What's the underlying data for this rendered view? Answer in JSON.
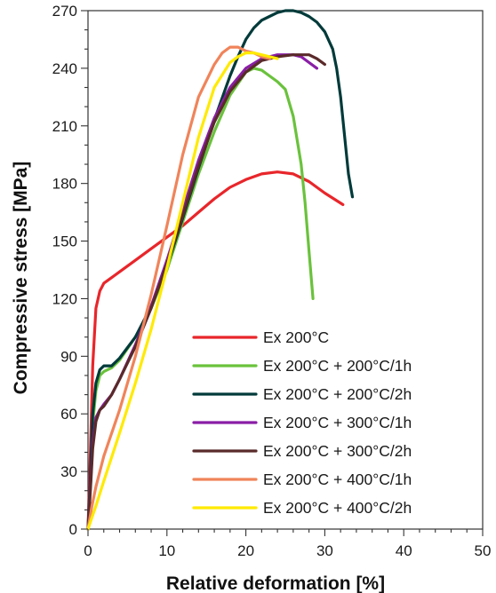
{
  "chart_data": {
    "type": "line",
    "title": "",
    "xlabel": "Relative deformation [%]",
    "ylabel": "Compressive stress [MPa]",
    "xlim": [
      0,
      50
    ],
    "ylim": [
      0,
      270
    ],
    "xticks": [
      0,
      10,
      20,
      30,
      40,
      50
    ],
    "yticks": [
      0,
      30,
      60,
      90,
      120,
      150,
      180,
      210,
      240,
      270
    ],
    "grid": false,
    "legend_position": "bottom-center",
    "series": [
      {
        "name": "Ex 200°C",
        "color": "#e8262b",
        "x": [
          0,
          0.3,
          0.6,
          1,
          1.5,
          2,
          3,
          4,
          6,
          8,
          10,
          12,
          14,
          16,
          18,
          20,
          22,
          24,
          26,
          28,
          30,
          32.3
        ],
        "y": [
          0,
          40,
          85,
          115,
          124,
          128,
          131,
          134,
          140,
          146,
          152,
          158,
          165,
          172,
          178,
          182,
          185,
          186,
          185,
          181,
          175,
          169
        ]
      },
      {
        "name": "Ex 200°C + 200°C/1h",
        "color": "#6ac23c",
        "x": [
          0,
          0.3,
          0.6,
          1,
          1.5,
          2,
          3,
          4,
          6,
          8,
          10,
          12,
          14,
          16,
          18,
          20,
          21,
          22,
          23,
          24,
          25,
          26,
          27,
          27.5,
          28,
          28.5
        ],
        "y": [
          0,
          25,
          55,
          72,
          80,
          82,
          84,
          88,
          100,
          115,
          135,
          160,
          185,
          207,
          226,
          238,
          240,
          239,
          236,
          233,
          229,
          215,
          190,
          170,
          145,
          120
        ]
      },
      {
        "name": "Ex 200°C + 200°C/2h",
        "color": "#003a3a",
        "x": [
          0,
          0.3,
          0.6,
          1,
          1.5,
          2,
          3,
          4,
          6,
          8,
          10,
          12,
          14,
          16,
          18,
          19,
          20,
          21,
          22,
          23,
          24,
          25,
          26,
          27,
          28,
          29,
          30,
          31,
          31.5,
          32,
          32.5,
          33,
          33.5
        ],
        "y": [
          0,
          28,
          60,
          76,
          83,
          85,
          85,
          89,
          100,
          116,
          137,
          162,
          188,
          213,
          236,
          246,
          255,
          261,
          265,
          267,
          269,
          270,
          270,
          269,
          267,
          264,
          259,
          250,
          240,
          225,
          205,
          185,
          173
        ]
      },
      {
        "name": "Ex 200°C + 300°C/1h",
        "color": "#8a1ea6",
        "x": [
          0,
          0.3,
          0.6,
          1,
          1.5,
          2,
          3,
          4,
          6,
          8,
          10,
          12,
          14,
          16,
          18,
          20,
          22,
          24,
          26,
          27,
          28,
          29
        ],
        "y": [
          0,
          22,
          45,
          58,
          62,
          65,
          70,
          78,
          96,
          116,
          140,
          166,
          192,
          214,
          230,
          240,
          245,
          247,
          247,
          246,
          243,
          240
        ]
      },
      {
        "name": "Ex 200°C + 300°C/2h",
        "color": "#5a2a2a",
        "x": [
          0,
          0.3,
          0.6,
          1,
          1.5,
          2,
          3,
          4,
          6,
          8,
          10,
          12,
          14,
          16,
          18,
          20,
          22,
          24,
          26,
          28,
          29,
          30
        ],
        "y": [
          0,
          20,
          42,
          56,
          62,
          64,
          70,
          78,
          95,
          115,
          138,
          163,
          189,
          212,
          228,
          238,
          244,
          246,
          247,
          247,
          245,
          242
        ]
      },
      {
        "name": "Ex 200°C + 400°C/1h",
        "color": "#f0845a",
        "x": [
          0,
          0.5,
          1,
          2,
          4,
          6,
          8,
          10,
          12,
          14,
          16,
          17,
          18,
          19,
          20,
          21,
          22,
          23
        ],
        "y": [
          0,
          12,
          22,
          38,
          62,
          90,
          122,
          158,
          195,
          225,
          242,
          248,
          251,
          251,
          249,
          248,
          246,
          245
        ]
      },
      {
        "name": "Ex 200°C + 400°C/2h",
        "color": "#ffea00",
        "x": [
          0,
          0.5,
          1,
          2,
          4,
          6,
          8,
          10,
          12,
          14,
          16,
          18,
          19,
          20,
          21,
          22,
          24
        ],
        "y": [
          0,
          6,
          12,
          25,
          50,
          76,
          104,
          136,
          170,
          204,
          230,
          243,
          246,
          248,
          248,
          247,
          245
        ]
      }
    ]
  }
}
